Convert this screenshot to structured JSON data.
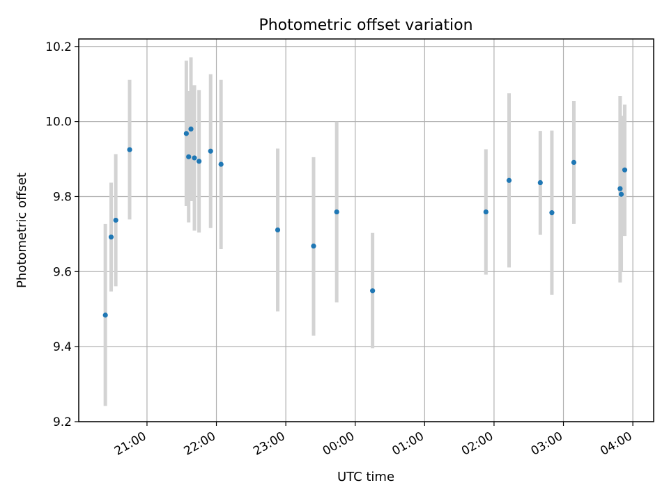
{
  "chart_data": {
    "type": "scatter",
    "title": "Photometric offset variation",
    "xlabel": "UTC time",
    "ylabel": "Photometric offset",
    "grid": true,
    "x_unit": "UTC time (HH:MM)",
    "xlim": [
      "20:01",
      "04:18"
    ],
    "ylim": [
      9.2,
      10.22
    ],
    "x_ticks": [
      "21:00",
      "22:00",
      "23:00",
      "00:00",
      "01:00",
      "02:00",
      "03:00",
      "04:00"
    ],
    "y_ticks": [
      "9.2",
      "9.4",
      "9.6",
      "9.8",
      "10.0",
      "10.2"
    ],
    "series": [
      {
        "error_bars": true,
        "points": [
          {
            "x": "20:24",
            "y": 9.484,
            "lo": 9.242,
            "hi": 9.727
          },
          {
            "x": "20:29",
            "y": 9.692,
            "lo": 9.547,
            "hi": 9.837
          },
          {
            "x": "20:33",
            "y": 9.737,
            "lo": 9.561,
            "hi": 9.913
          },
          {
            "x": "20:45",
            "y": 9.925,
            "lo": 9.739,
            "hi": 10.111
          },
          {
            "x": "21:34",
            "y": 9.968,
            "lo": 9.775,
            "hi": 10.162
          },
          {
            "x": "21:36",
            "y": 9.906,
            "lo": 9.731,
            "hi": 10.081
          },
          {
            "x": "21:38",
            "y": 9.98,
            "lo": 9.788,
            "hi": 10.171
          },
          {
            "x": "21:41",
            "y": 9.903,
            "lo": 9.709,
            "hi": 10.097
          },
          {
            "x": "21:45",
            "y": 9.894,
            "lo": 9.704,
            "hi": 10.084
          },
          {
            "x": "21:55",
            "y": 9.921,
            "lo": 9.716,
            "hi": 10.126
          },
          {
            "x": "22:04",
            "y": 9.886,
            "lo": 9.66,
            "hi": 10.111
          },
          {
            "x": "22:53",
            "y": 9.711,
            "lo": 9.494,
            "hi": 9.928
          },
          {
            "x": "23:24",
            "y": 9.668,
            "lo": 9.429,
            "hi": 9.905
          },
          {
            "x": "23:44",
            "y": 9.759,
            "lo": 9.518,
            "hi": 10.0
          },
          {
            "x": "00:15",
            "y": 9.549,
            "lo": 9.396,
            "hi": 9.703
          },
          {
            "x": "01:53",
            "y": 9.759,
            "lo": 9.592,
            "hi": 9.926
          },
          {
            "x": "02:13",
            "y": 9.843,
            "lo": 9.611,
            "hi": 10.075
          },
          {
            "x": "02:40",
            "y": 9.837,
            "lo": 9.698,
            "hi": 9.975
          },
          {
            "x": "02:50",
            "y": 9.757,
            "lo": 9.538,
            "hi": 9.976
          },
          {
            "x": "03:09",
            "y": 9.891,
            "lo": 9.727,
            "hi": 10.055
          },
          {
            "x": "03:49",
            "y": 9.821,
            "lo": 9.571,
            "hi": 10.068
          },
          {
            "x": "03:50",
            "y": 9.806,
            "lo": 9.6,
            "hi": 10.015
          },
          {
            "x": "03:53",
            "y": 9.871,
            "lo": 9.695,
            "hi": 10.045
          }
        ]
      }
    ],
    "colors": {
      "point": "#1f77b4",
      "errorbar": "#d3d3d3",
      "grid": "#b0b0b0"
    }
  }
}
